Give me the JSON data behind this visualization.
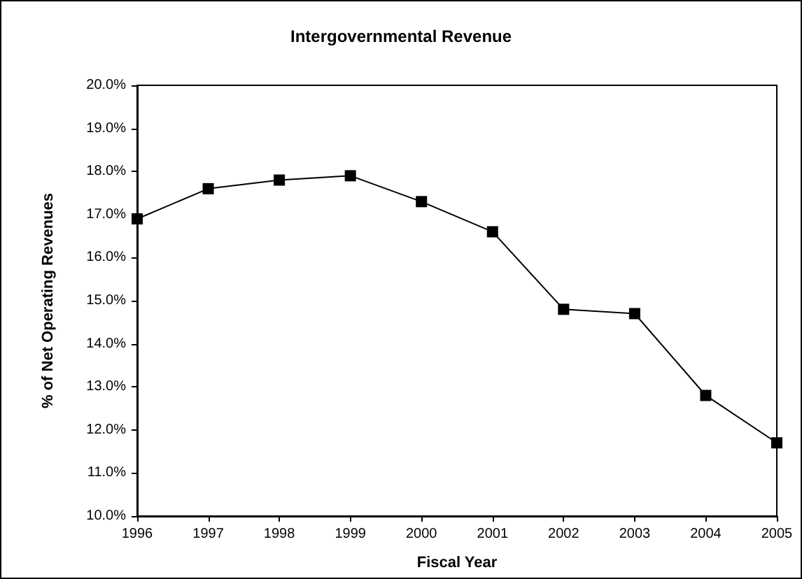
{
  "chart_data": {
    "type": "line",
    "title": "Intergovernmental Revenue",
    "xlabel": "Fiscal Year",
    "ylabel": "% of Net Operating Revenues",
    "categories": [
      "1996",
      "1997",
      "1998",
      "1999",
      "2000",
      "2001",
      "2002",
      "2003",
      "2004",
      "2005"
    ],
    "series": [
      {
        "color": "#000000",
        "values": [
          16.9,
          17.6,
          17.8,
          17.9,
          17.3,
          16.6,
          14.8,
          14.7,
          12.8,
          11.7
        ]
      }
    ],
    "ylim": [
      10,
      20
    ],
    "yticks": [
      {
        "value": 10,
        "label": "10.0%"
      },
      {
        "value": 11,
        "label": "11.0%"
      },
      {
        "value": 12,
        "label": "12.0%"
      },
      {
        "value": 13,
        "label": "13.0%"
      },
      {
        "value": 14,
        "label": "14.0%"
      },
      {
        "value": 15,
        "label": "15.0%"
      },
      {
        "value": 16,
        "label": "16.0%"
      },
      {
        "value": 17,
        "label": "17.0%"
      },
      {
        "value": 18,
        "label": "18.0%"
      },
      {
        "value": 19,
        "label": "19.0%"
      },
      {
        "value": 20,
        "label": "20.0%"
      }
    ],
    "grid": false,
    "marker": "square",
    "line_style": "solid"
  }
}
